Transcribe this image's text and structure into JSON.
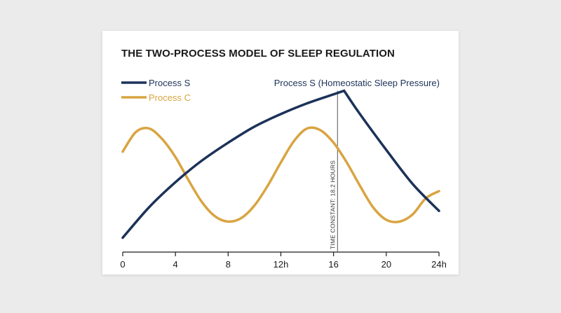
{
  "chart_data": {
    "type": "line",
    "title": "THE TWO-PROCESS MODEL OF SLEEP REGULATION",
    "x_ticks": [
      "0",
      "4",
      "8",
      "12h",
      "16",
      "20",
      "24h"
    ],
    "xlim": [
      0,
      24
    ],
    "ylim": [
      0,
      1
    ],
    "grid": false,
    "legend_position": "top-left",
    "series": [
      {
        "name": "Process S",
        "color": "#1c3259",
        "x": [
          0,
          2,
          4,
          6,
          8,
          10,
          12,
          14,
          16,
          16.8,
          18,
          20,
          22,
          24
        ],
        "y": [
          0.08,
          0.25,
          0.39,
          0.51,
          0.61,
          0.7,
          0.77,
          0.83,
          0.88,
          0.9,
          0.77,
          0.57,
          0.38,
          0.23
        ]
      },
      {
        "name": "Process C",
        "color": "#d9a441",
        "x": [
          0,
          1,
          2,
          3,
          4,
          5,
          6,
          7,
          8,
          9,
          10,
          11,
          12,
          13,
          14,
          15,
          16,
          17,
          18,
          19,
          20,
          21,
          22,
          23,
          24
        ],
        "y": [
          0.56,
          0.67,
          0.69,
          0.63,
          0.53,
          0.4,
          0.28,
          0.2,
          0.17,
          0.19,
          0.26,
          0.37,
          0.5,
          0.62,
          0.69,
          0.68,
          0.61,
          0.5,
          0.37,
          0.25,
          0.18,
          0.17,
          0.21,
          0.3,
          0.34
        ]
      }
    ],
    "annotations": [
      {
        "text": "Process S (Homeostatic Sleep Pressure)",
        "x": 16.8
      },
      {
        "text": "TIME CONSTANT: 18.2 HOURS",
        "x": 16.3
      }
    ]
  }
}
